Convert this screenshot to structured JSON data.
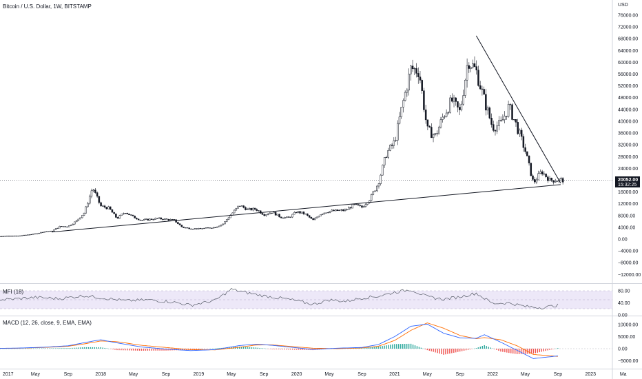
{
  "header": {
    "title": "Bitcoin / U.S. Dollar, 1W, BITSTAMP"
  },
  "price_axis": {
    "currency": "USD",
    "ticks": [
      "76000.00",
      "72000.00",
      "68000.00",
      "64000.00",
      "60000.00",
      "56000.00",
      "52000.00",
      "48000.00",
      "44000.00",
      "40000.00",
      "36000.00",
      "32000.00",
      "28000.00",
      "24000.00",
      "16000.00",
      "12000.00",
      "8000.00",
      "4000.00",
      "0.00",
      "−4000.00",
      "−8000.00",
      "−12000.00"
    ],
    "last_price": "20052.00",
    "countdown": "15:32:25"
  },
  "mfi": {
    "title": "MFI (18)",
    "ticks": [
      "80.00",
      "40.00",
      "0.00"
    ]
  },
  "macd": {
    "title": "MACD (12, 26, close, 9, EMA, EMA)",
    "ticks": [
      "10000.00",
      "5000.00",
      "0.00",
      "−5000.00"
    ]
  },
  "time_axis": {
    "labels": [
      "2017",
      "May",
      "Sep",
      "2018",
      "May",
      "Sep",
      "2019",
      "May",
      "Sep",
      "2020",
      "May",
      "Sep",
      "2021",
      "May",
      "Sep",
      "2022",
      "May",
      "Sep",
      "2023",
      "Ma"
    ]
  },
  "colors": {
    "candles": "#131722",
    "trendlines": "#131722",
    "mfi_band": "#e9e4f7",
    "macd_line": "#2962ff",
    "signal_line": "#ff6d00",
    "hist_pos": "#26a69a",
    "hist_neg": "#ef5350"
  },
  "chart_data": [
    {
      "type": "candlestick",
      "title": "Bitcoin / U.S. Dollar, 1W, BITSTAMP",
      "ylabel": "USD",
      "ylim": [
        -14000,
        80000
      ],
      "xlim": [
        "2016-11",
        "2023-03"
      ],
      "grid": false,
      "last_price": 20052,
      "approximate_weekly_close_series": {
        "x": [
          "2016-11",
          "2017-01",
          "2017-03",
          "2017-05",
          "2017-06",
          "2017-07",
          "2017-08",
          "2017-09",
          "2017-10",
          "2017-11",
          "2017-12",
          "2018-01",
          "2018-02",
          "2018-03",
          "2018-04",
          "2018-05",
          "2018-06",
          "2018-08",
          "2018-10",
          "2018-11",
          "2018-12",
          "2019-01",
          "2019-03",
          "2019-04",
          "2019-05",
          "2019-06",
          "2019-07",
          "2019-08",
          "2019-09",
          "2019-10",
          "2019-11",
          "2019-12",
          "2020-01",
          "2020-02",
          "2020-03",
          "2020-04",
          "2020-05",
          "2020-07",
          "2020-08",
          "2020-09",
          "2020-10",
          "2020-11",
          "2020-12",
          "2021-01",
          "2021-02",
          "2021-03",
          "2021-04",
          "2021-05",
          "2021-06",
          "2021-07",
          "2021-08",
          "2021-09",
          "2021-10",
          "2021-11",
          "2021-12",
          "2022-01",
          "2022-02",
          "2022-03",
          "2022-04",
          "2022-05",
          "2022-06",
          "2022-07",
          "2022-08",
          "2022-09"
        ],
        "y": [
          740,
          1000,
          1100,
          1800,
          2500,
          2700,
          4300,
          4300,
          6100,
          9000,
          17500,
          11200,
          10500,
          7000,
          9200,
          7500,
          6400,
          7000,
          6400,
          4000,
          3600,
          3500,
          4000,
          5200,
          8500,
          11500,
          10000,
          10200,
          8300,
          9200,
          7500,
          7200,
          9300,
          8600,
          6400,
          8700,
          9500,
          9800,
          11600,
          10800,
          13800,
          19000,
          29000,
          33000,
          46000,
          58000,
          57000,
          37000,
          35000,
          42000,
          47000,
          43000,
          61000,
          57000,
          47000,
          38000,
          39000,
          45000,
          38000,
          30000,
          19000,
          23000,
          20000,
          20052
        ]
      },
      "trendlines": [
        {
          "name": "",
          "from": {
            "x": "2017-07",
            "y": 2400
          },
          "to": {
            "x": "2022-09",
            "y": 18500
          }
        },
        {
          "name": "",
          "from": {
            "x": "2021-11",
            "y": 69000
          },
          "to": {
            "x": "2022-09",
            "y": 19000
          }
        }
      ]
    },
    {
      "type": "line",
      "title": "MFI (18)",
      "ylim": [
        0,
        100
      ],
      "band": [
        20,
        80
      ],
      "x": [
        "2016-11",
        "2017-02",
        "2017-05",
        "2017-08",
        "2017-11",
        "2018-01",
        "2018-04",
        "2018-07",
        "2018-10",
        "2018-12",
        "2019-03",
        "2019-05",
        "2019-07",
        "2019-09",
        "2019-12",
        "2020-03",
        "2020-05",
        "2020-07",
        "2020-09",
        "2020-11",
        "2021-01",
        "2021-03",
        "2021-05",
        "2021-07",
        "2021-09",
        "2021-11",
        "2022-01",
        "2022-03",
        "2022-05",
        "2022-07",
        "2022-09"
      ],
      "series": [
        {
          "name": "",
          "values": [
            48,
            52,
            58,
            54,
            64,
            57,
            47,
            50,
            42,
            32,
            48,
            85,
            73,
            63,
            52,
            35,
            50,
            45,
            56,
            62,
            75,
            84,
            60,
            52,
            60,
            72,
            38,
            40,
            28,
            24,
            32
          ]
        }
      ]
    },
    {
      "type": "line",
      "title": "MACD (12, 26, close, 9, EMA, EMA)",
      "ylim": [
        -6500,
        12000
      ],
      "x": [
        "2016-11",
        "2017-03",
        "2017-06",
        "2017-09",
        "2017-11",
        "2018-01",
        "2018-03",
        "2018-06",
        "2018-09",
        "2018-12",
        "2019-03",
        "2019-06",
        "2019-08",
        "2019-10",
        "2019-12",
        "2020-03",
        "2020-06",
        "2020-09",
        "2020-11",
        "2021-01",
        "2021-03",
        "2021-05",
        "2021-07",
        "2021-09",
        "2021-11",
        "2021-12",
        "2022-02",
        "2022-04",
        "2022-06",
        "2022-09"
      ],
      "series": [
        {
          "name": "",
          "values": [
            100,
            250,
            600,
            1200,
            2500,
            3700,
            2400,
            700,
            -150,
            -800,
            -400,
            1300,
            1900,
            1400,
            700,
            -300,
            200,
            500,
            1700,
            5000,
            9300,
            10200,
            6400,
            4500,
            4300,
            5800,
            2700,
            -700,
            -4100,
            -3000
          ]
        },
        {
          "name": "",
          "values": [
            80,
            200,
            500,
            1000,
            2000,
            3200,
            2900,
            1400,
            500,
            -400,
            -500,
            600,
            1500,
            1600,
            1000,
            200,
            0,
            300,
            1000,
            3400,
            7600,
            10700,
            8500,
            5500,
            4100,
            4600,
            3700,
            1200,
            -2400,
            -3200
          ]
        }
      ]
    }
  ]
}
